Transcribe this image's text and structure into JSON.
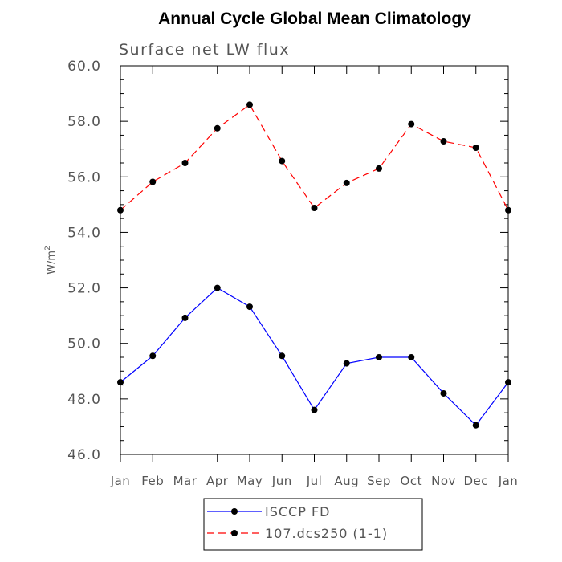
{
  "chart_data": {
    "type": "line",
    "title": "Annual Cycle Global Mean Climatology",
    "subtitle": "Surface net LW flux",
    "ylabel_main": "W/m",
    "ylabel_sup": "2",
    "xlabel": "",
    "categories": [
      "Jan",
      "Feb",
      "Mar",
      "Apr",
      "May",
      "Jun",
      "Jul",
      "Aug",
      "Sep",
      "Oct",
      "Nov",
      "Dec",
      "Jan"
    ],
    "ylim": [
      46.0,
      60.0
    ],
    "yticks": [
      46.0,
      48.0,
      50.0,
      52.0,
      54.0,
      56.0,
      58.0,
      60.0
    ],
    "ytick_labels": [
      "46.0",
      "48.0",
      "50.0",
      "52.0",
      "54.0",
      "56.0",
      "58.0",
      "60.0"
    ],
    "grid": false,
    "legend_position": "bottom",
    "series": [
      {
        "name": "ISCCP FD",
        "color": "#0000ff",
        "dash": "solid",
        "marker": "filled-circle",
        "values": [
          48.6,
          49.55,
          50.92,
          52.0,
          51.32,
          49.55,
          47.6,
          49.28,
          49.5,
          49.5,
          48.2,
          47.05,
          48.6
        ]
      },
      {
        "name": "107.dcs250 (1-1)",
        "color": "#ff0000",
        "dash": "dashed",
        "marker": "filled-circle",
        "values": [
          54.8,
          55.82,
          56.5,
          57.75,
          58.6,
          56.57,
          54.88,
          55.78,
          56.3,
          57.9,
          57.28,
          57.05,
          54.8
        ]
      }
    ]
  }
}
